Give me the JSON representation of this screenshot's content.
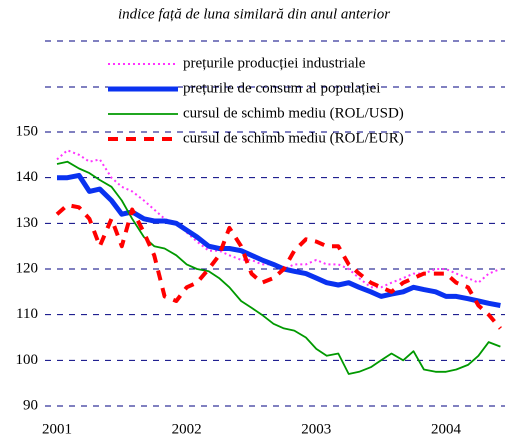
{
  "chart_data": {
    "type": "line",
    "subtitle": "indice față de luna similară din anul anterior",
    "x": [
      2001,
      2001.08,
      2001.17,
      2001.25,
      2001.33,
      2001.42,
      2001.5,
      2001.58,
      2001.67,
      2001.75,
      2001.83,
      2001.92,
      2002,
      2002.08,
      2002.17,
      2002.25,
      2002.33,
      2002.42,
      2002.5,
      2002.58,
      2002.67,
      2002.75,
      2002.83,
      2002.92,
      2003,
      2003.08,
      2003.17,
      2003.25,
      2003.33,
      2003.42,
      2003.5,
      2003.58,
      2003.67,
      2003.75,
      2003.83,
      2003.92,
      2004,
      2004.08,
      2004.17,
      2004.25,
      2004.33,
      2004.42
    ],
    "series": [
      {
        "name": "prețurile producției industriale",
        "color": "#ff33ff",
        "style": "dotted",
        "values": [
          144,
          146,
          145,
          143.5,
          144,
          140,
          138,
          137,
          135,
          133,
          131,
          130,
          128,
          126,
          124,
          124,
          123,
          122,
          122,
          121,
          121,
          120,
          121,
          121,
          122,
          121,
          121,
          120,
          118,
          116,
          116,
          117,
          118,
          119,
          119,
          120,
          120,
          119,
          118,
          117,
          119,
          120
        ]
      },
      {
        "name": "prețurile de consum al populației",
        "color": "#0a32f0",
        "style": "thick",
        "values": [
          140,
          140,
          140.5,
          137,
          137.5,
          135,
          132,
          132.5,
          131,
          130.5,
          130.5,
          130,
          128.5,
          127,
          125,
          124.5,
          124.5,
          124,
          123,
          122,
          121,
          120,
          119.5,
          119,
          118,
          117,
          116.5,
          117,
          116,
          115,
          114,
          114.5,
          115,
          116,
          115.5,
          115,
          114,
          114,
          113.5,
          113,
          112.5,
          112
        ]
      },
      {
        "name": "cursul de schimb mediu (ROL/USD)",
        "color": "#009900",
        "style": "solid",
        "values": [
          143,
          143.5,
          142,
          141,
          139.5,
          138,
          135,
          131,
          127,
          125,
          124.5,
          123,
          121,
          120,
          119.5,
          118,
          116,
          113,
          111.5,
          110,
          108,
          107,
          106.5,
          105,
          102.5,
          101,
          101.5,
          97,
          97.5,
          98.5,
          100,
          101.5,
          100,
          102,
          98,
          97.5,
          97.5,
          98,
          99,
          101,
          104,
          103
        ]
      },
      {
        "name": "cursul de schimb mediu (ROL/EUR)",
        "color": "#ff0000",
        "style": "dashed",
        "values": [
          132,
          134,
          133.5,
          131,
          125,
          131,
          125,
          133,
          128,
          123,
          114,
          113,
          116,
          117,
          120,
          123,
          129,
          125,
          119,
          117,
          118,
          120,
          124,
          126.5,
          126,
          125,
          125,
          121,
          119,
          117,
          116,
          115,
          117,
          118,
          119,
          119,
          119,
          117,
          116,
          112,
          110,
          107
        ]
      }
    ],
    "xlim": [
      2001,
      2004.44
    ],
    "xticks": [
      2001,
      2002,
      2003,
      2004
    ],
    "ylim": [
      90,
      150
    ],
    "yticks": [
      90,
      100,
      110,
      120,
      130,
      140,
      150
    ],
    "grid": true
  }
}
